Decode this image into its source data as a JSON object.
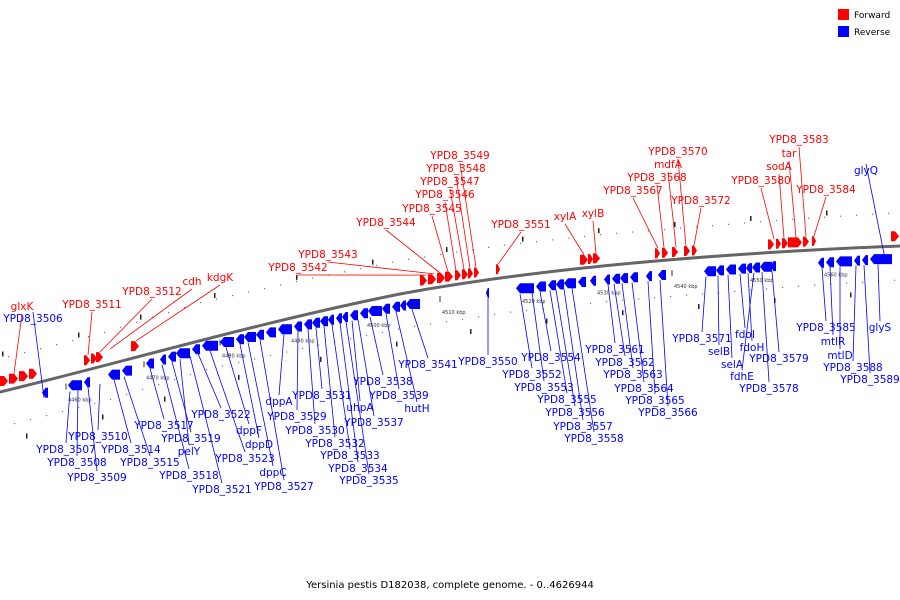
{
  "caption": "Yersinia pestis D182038, complete genome. - 0..4626944",
  "legend": [
    {
      "label": "Forward",
      "color": "#ff0000"
    },
    {
      "label": "Reverse",
      "color": "#0000ff"
    }
  ],
  "colors": {
    "forward": "#ff0000",
    "reverse": "#0000ff",
    "backbone": "#666666"
  },
  "kbp_ticks": [
    "4460 kbp",
    "4470 kbp",
    "4480 kbp",
    "4490 kbp",
    "4500 kbp",
    "4510 kbp",
    "4520 kbp",
    "4530 kbp",
    "4540 kbp",
    "4550 kbp",
    "4560 kbp"
  ],
  "forward_labels": [
    "glxK",
    "YPD8_3511",
    "YPD8_3512",
    "cdh",
    "kdgK",
    "YPD8_3542",
    "YPD8_3543",
    "YPD8_3544",
    "YPD8_3545",
    "YPD8_3546",
    "YPD8_3547",
    "YPD8_3548",
    "YPD8_3549",
    "YPD8_3551",
    "xylA",
    "xylB",
    "YPD8_3567",
    "YPD8_3568",
    "mdfA",
    "YPD8_3570",
    "YPD8_3572",
    "YPD8_3580",
    "sodA",
    "tar",
    "YPD8_3583",
    "YPD8_3584"
  ],
  "reverse_labels": [
    "glyQ",
    "YPD8_3506",
    "YPD8_3507",
    "YPD8_3508",
    "YPD8_3509",
    "YPD8_3510",
    "YPD8_3514",
    "YPD8_3515",
    "YPD8_3517",
    "YPD8_3518",
    "YPD8_3519",
    "pelY",
    "YPD8_3521",
    "YPD8_3522",
    "YPD8_3523",
    "dppF",
    "dppD",
    "dppC",
    "YPD8_3527",
    "dppA",
    "YPD8_3529",
    "YPD8_3530",
    "YPD8_3531",
    "YPD8_3532",
    "YPD8_3533",
    "YPD8_3534",
    "YPD8_3535",
    "uhpA",
    "YPD8_3537",
    "YPD8_3538",
    "YPD8_3539",
    "hutH",
    "YPD8_3541",
    "YPD8_3550",
    "YPD8_3552",
    "YPD8_3553",
    "YPD8_3554",
    "YPD8_3555",
    "YPD8_3556",
    "YPD8_3557",
    "YPD8_3558",
    "YPD8_3561",
    "YPD8_3562",
    "YPD8_3563",
    "YPD8_3564",
    "YPD8_3565",
    "YPD8_3566",
    "YPD8_3571",
    "selB",
    "selA",
    "fdoI",
    "fdoH",
    "fdhE",
    "YPD8_3578",
    "YPD8_3579",
    "YPD8_3585",
    "mtlR",
    "mtlD",
    "YPD8_3588",
    "YPD8_3589",
    "glyS"
  ]
}
